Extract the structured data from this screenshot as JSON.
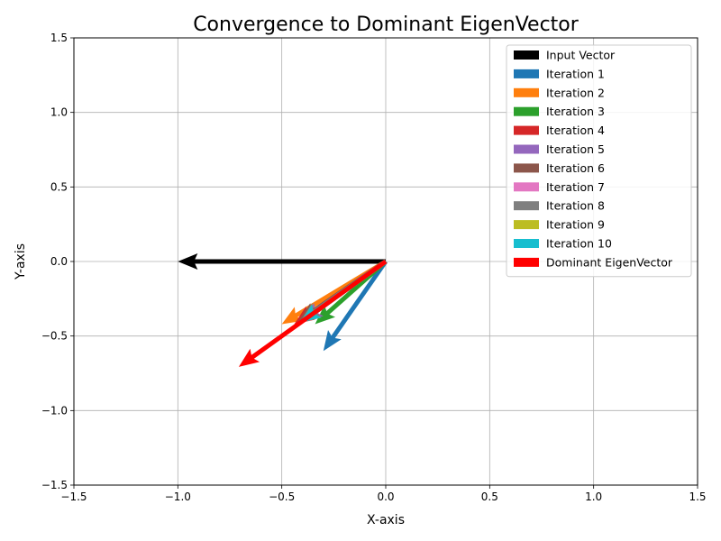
{
  "chart_data": {
    "type": "quiver",
    "title": "Convergence to Dominant EigenVector",
    "xlabel": "X-axis",
    "ylabel": "Y-axis",
    "xlim": [
      -1.5,
      1.5
    ],
    "ylim": [
      -1.5,
      1.5
    ],
    "xticks": [
      "−1.5",
      "−1.0",
      "−0.5",
      "0.0",
      "0.5",
      "1.0",
      "1.5"
    ],
    "yticks": [
      "−1.5",
      "−1.0",
      "−0.5",
      "0.0",
      "0.5",
      "1.0",
      "1.5"
    ],
    "xtick_values": [
      -1.5,
      -1.0,
      -0.5,
      0.0,
      0.5,
      1.0,
      1.5
    ],
    "ytick_values": [
      -1.5,
      -1.0,
      -0.5,
      0.0,
      0.5,
      1.0,
      1.5
    ],
    "grid": true,
    "legend_position": "top-right",
    "vectors": [
      {
        "name": "Input Vector",
        "color": "#000000",
        "x": -1.0,
        "y": 0.0
      },
      {
        "name": "Iteration 1",
        "color": "#1f77b4",
        "x": -0.3,
        "y": -0.6
      },
      {
        "name": "Iteration 2",
        "color": "#ff7f0e",
        "x": -0.5,
        "y": -0.42
      },
      {
        "name": "Iteration 3",
        "color": "#2ca02c",
        "x": -0.34,
        "y": -0.42
      },
      {
        "name": "Iteration 4",
        "color": "#d62728",
        "x": -0.44,
        "y": -0.42
      },
      {
        "name": "Iteration 5",
        "color": "#9467bd",
        "x": -0.4,
        "y": -0.4
      },
      {
        "name": "Iteration 6",
        "color": "#8c564b",
        "x": -0.42,
        "y": -0.4
      },
      {
        "name": "Iteration 7",
        "color": "#e377c2",
        "x": -0.41,
        "y": -0.41
      },
      {
        "name": "Iteration 8",
        "color": "#7f7f7f",
        "x": -0.41,
        "y": -0.4
      },
      {
        "name": "Iteration 9",
        "color": "#bcbd22",
        "x": -0.41,
        "y": -0.41
      },
      {
        "name": "Iteration 10",
        "color": "#17becf",
        "x": -0.41,
        "y": -0.41
      },
      {
        "name": "Dominant EigenVector",
        "color": "#ff0000",
        "x": -0.707,
        "y": -0.707
      }
    ]
  }
}
